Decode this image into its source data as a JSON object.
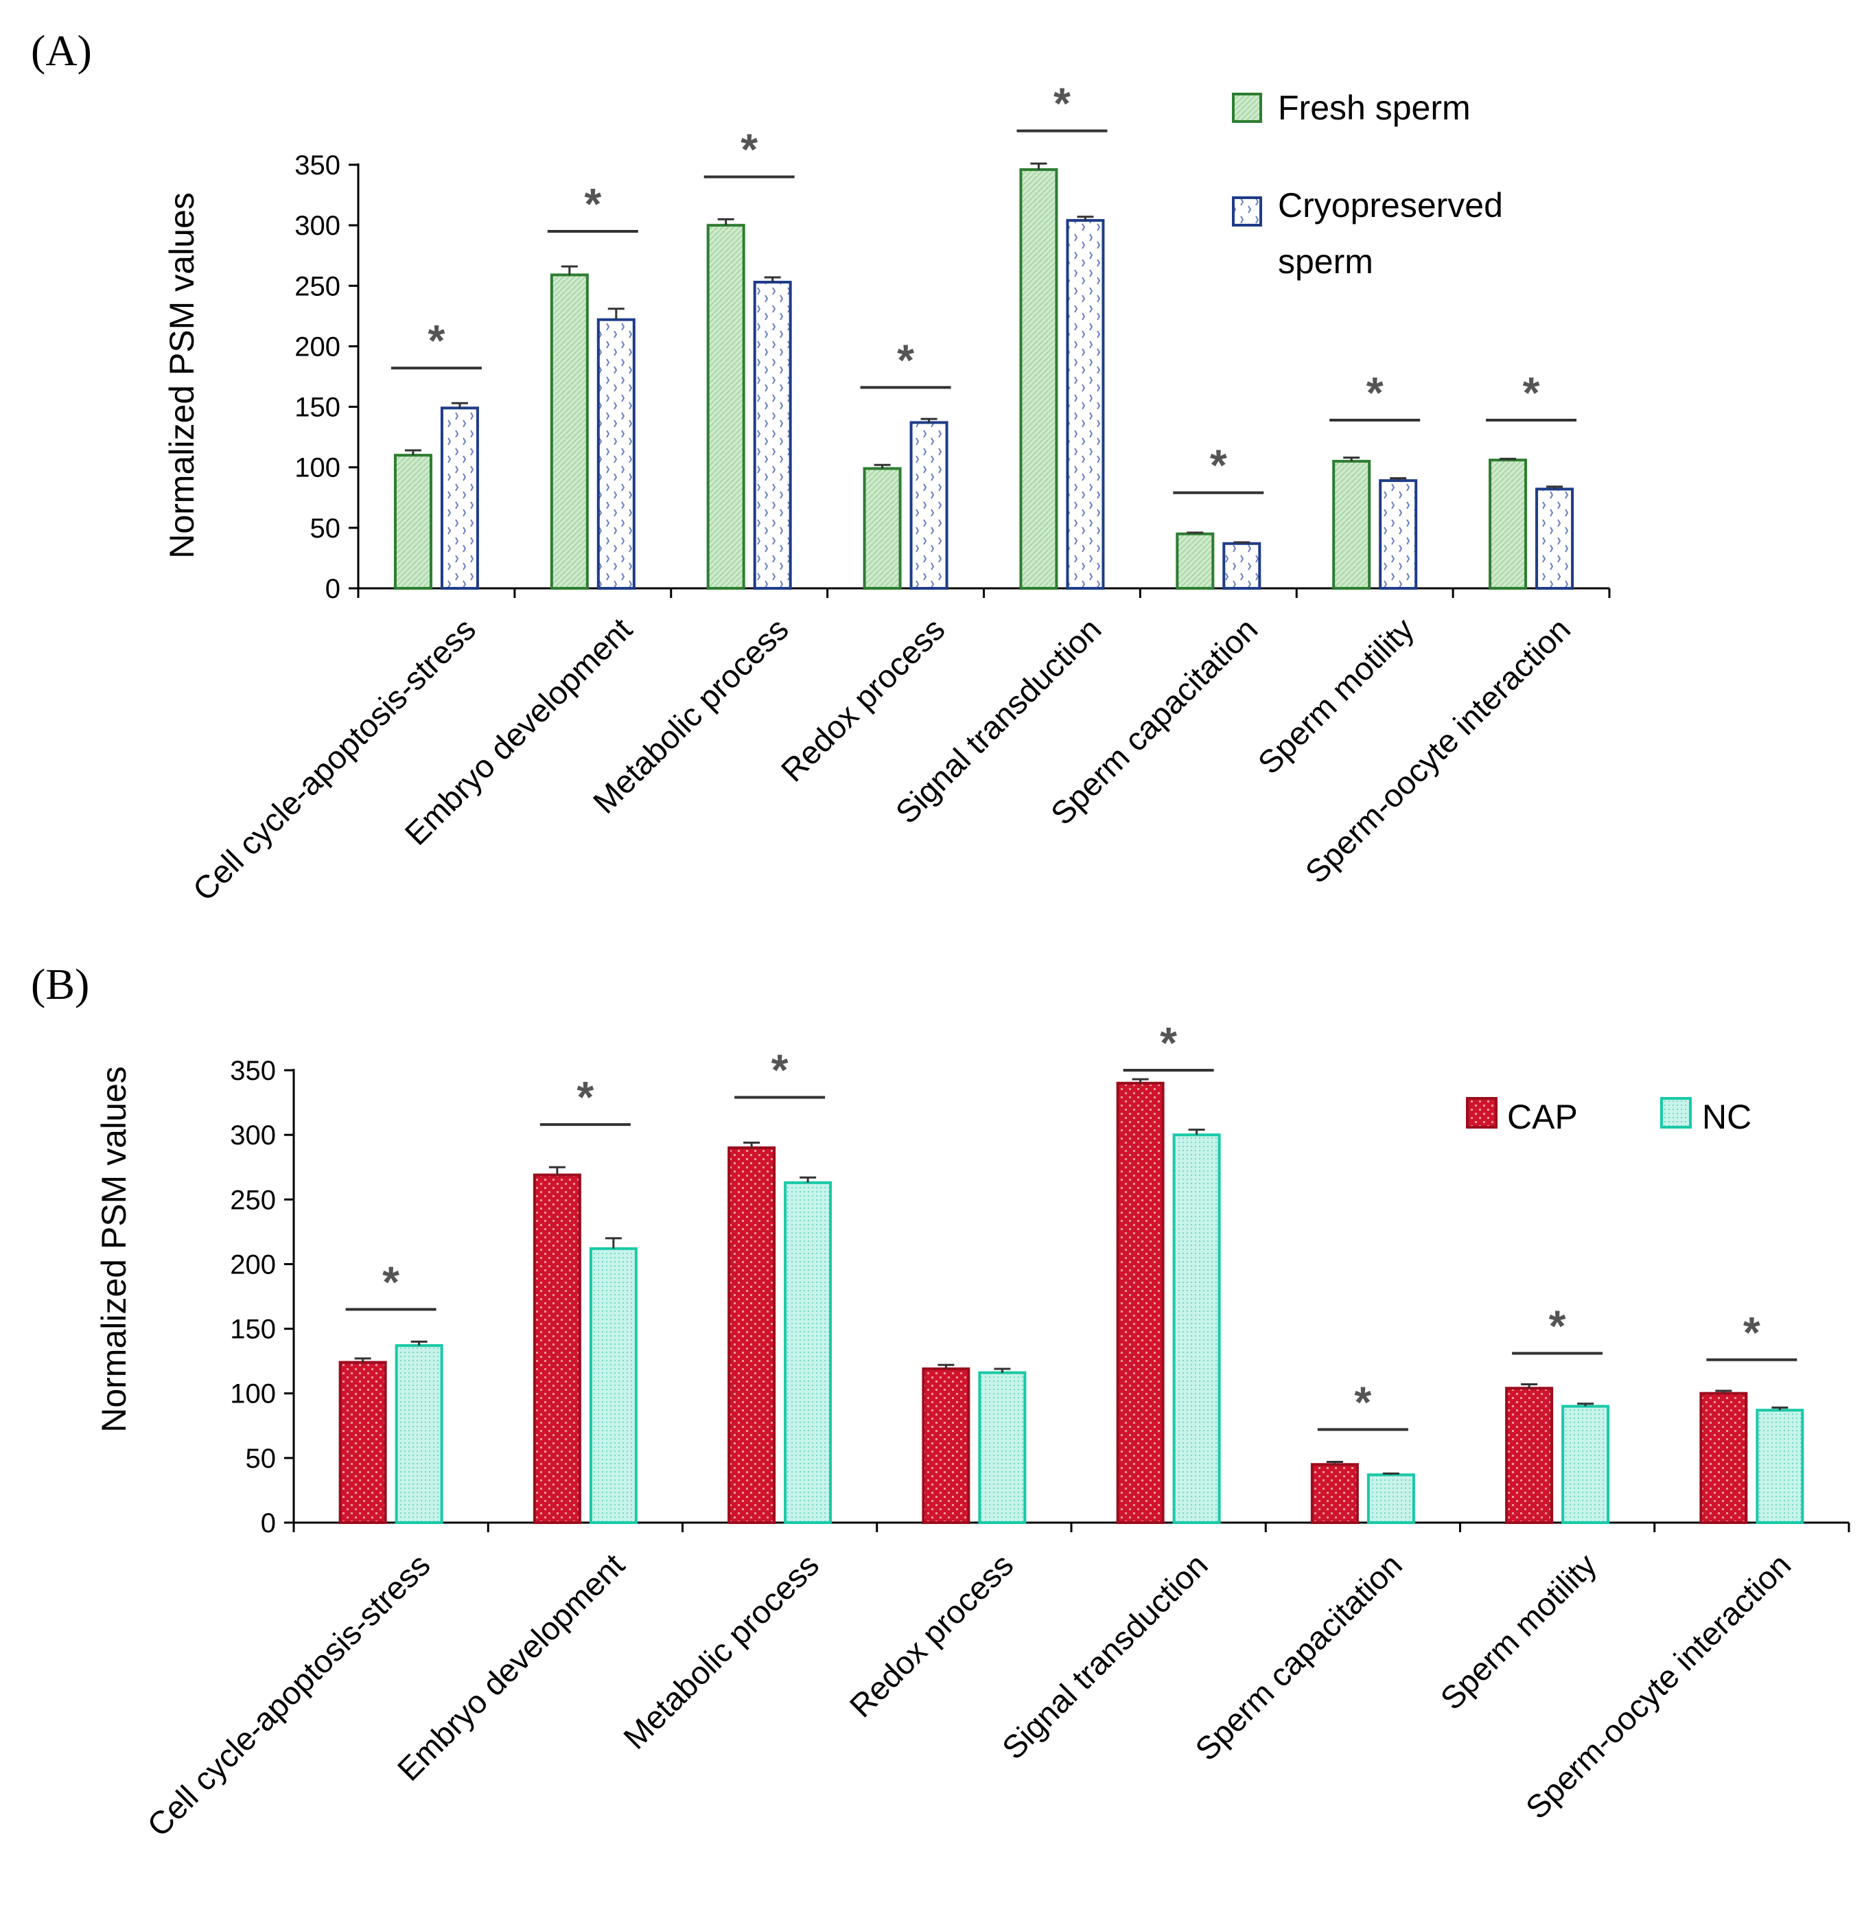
{
  "chart_data": [
    {
      "type": "bar",
      "panel_label": "(A)",
      "ylabel": "Normalized PSM values",
      "ylim": [
        0,
        350
      ],
      "yticks": [
        0,
        50,
        100,
        150,
        200,
        250,
        300,
        350
      ],
      "categories": [
        "Cell cycle-apoptosis-stress",
        "Embryo development",
        "Metabolic process",
        "Redox process",
        "Signal transduction",
        "Sperm capacitation",
        "Sperm motility",
        "Sperm-oocyte interaction"
      ],
      "series": [
        {
          "name": "Fresh sperm",
          "values": [
            110,
            259,
            300,
            99,
            346,
            45,
            105,
            106
          ],
          "errors": [
            4,
            7,
            5,
            3,
            5,
            1,
            3,
            1
          ],
          "fill": "#cdeacb",
          "stroke": "#2e7d32"
        },
        {
          "name": "Cryopreserved sperm",
          "values": [
            149,
            222,
            253,
            137,
            304,
            37,
            89,
            82
          ],
          "errors": [
            4,
            9,
            4,
            3,
            3,
            1,
            2,
            2
          ],
          "fill": "#ffffff",
          "stroke": "#1f3c88"
        }
      ],
      "legend_lines": [
        [
          "Fresh sperm"
        ],
        [
          "Cryopreserved",
          "sperm"
        ]
      ],
      "significance": [
        {
          "index": 0,
          "level": 182,
          "mark": "*"
        },
        {
          "index": 1,
          "level": 295,
          "mark": "*"
        },
        {
          "index": 2,
          "level": 340,
          "mark": "*"
        },
        {
          "index": 3,
          "level": 166,
          "mark": "*"
        },
        {
          "index": 4,
          "level": 378,
          "mark": "*"
        },
        {
          "index": 5,
          "level": 79,
          "mark": "*"
        },
        {
          "index": 6,
          "level": 139,
          "mark": "*"
        },
        {
          "index": 7,
          "level": 139,
          "mark": "*"
        }
      ]
    },
    {
      "type": "bar",
      "panel_label": "(B)",
      "ylabel": "Normalized PSM values",
      "ylim": [
        0,
        350
      ],
      "yticks": [
        0,
        50,
        100,
        150,
        200,
        250,
        300,
        350
      ],
      "categories": [
        "Cell cycle-apoptosis-stress",
        "Embryo development",
        "Metabolic process",
        "Redox process",
        "Signal transduction",
        "Sperm capacitation",
        "Sperm motility",
        "Sperm-oocyte interaction"
      ],
      "series": [
        {
          "name": "CAP",
          "values": [
            124,
            269,
            290,
            119,
            340,
            45,
            104,
            100
          ],
          "errors": [
            3,
            6,
            4,
            3,
            3,
            2,
            3,
            2
          ],
          "fill": "#d0142c",
          "stroke": "#9b0d1e"
        },
        {
          "name": "NC",
          "values": [
            137,
            212,
            263,
            116,
            300,
            37,
            90,
            87
          ],
          "errors": [
            3,
            8,
            4,
            3,
            4,
            1,
            2,
            2
          ],
          "fill": "#c8f3ea",
          "stroke": "#19c9a7"
        }
      ],
      "legend_lines": [
        [
          "CAP"
        ],
        [
          "NC"
        ]
      ],
      "significance": [
        {
          "index": 0,
          "level": 165,
          "mark": "*"
        },
        {
          "index": 1,
          "level": 308,
          "mark": "*"
        },
        {
          "index": 2,
          "level": 329,
          "mark": "*"
        },
        {
          "index": 4,
          "level": 350,
          "mark": "*"
        },
        {
          "index": 5,
          "level": 72,
          "mark": "*"
        },
        {
          "index": 6,
          "level": 131,
          "mark": "*"
        },
        {
          "index": 7,
          "level": 126,
          "mark": "*"
        }
      ]
    }
  ]
}
